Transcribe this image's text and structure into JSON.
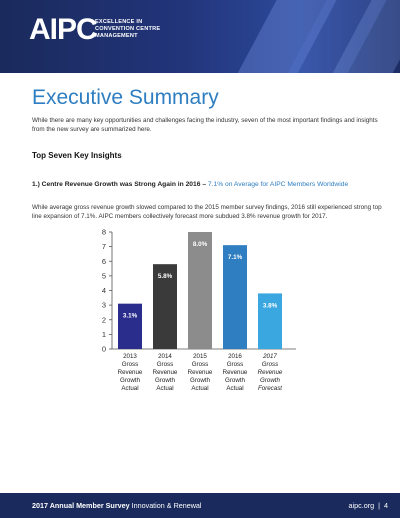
{
  "header": {
    "logo": "AIPC",
    "tagline": [
      "EXCELLENCE IN",
      "CONVENTION CENTRE",
      "MANAGEMENT"
    ]
  },
  "page": {
    "title": "Executive Summary",
    "intro": "While there are many key opportunities and challenges facing the industry, seven of the most important findings and insights from the new survey are summarized here.",
    "section_title": "Top Seven Key Insights",
    "insight_title_bold": "1.) Centre Revenue Growth was Strong Again in 2016 –",
    "insight_title_rest": " 7.1% on Average for AIPC Members Worldwide",
    "paragraph": "While average gross revenue growth slowed compared to the 2015 member survey findings, 2016 still experienced strong top line expansion of 7.1%. AIPC members collectively forecast more subdued 3.8% revenue growth for 2017."
  },
  "chart_data": {
    "type": "bar",
    "categories": [
      [
        "2013",
        "Gross",
        "Revenue",
        "Growth",
        "Actual"
      ],
      [
        "2014",
        "Gross",
        "Revenue",
        "Growth",
        "Actual"
      ],
      [
        "2015",
        "Gross",
        "Revenue",
        "Growth",
        "Actual"
      ],
      [
        "2016",
        "Gross",
        "Revenue",
        "Growth",
        "Actual"
      ],
      [
        "2017",
        "Gross",
        "Revenue",
        "Growth",
        "Forecast"
      ]
    ],
    "italic_categories": [
      4
    ],
    "values": [
      3.1,
      5.8,
      8.0,
      7.1,
      3.8
    ],
    "data_labels": [
      "3.1%",
      "5.8%",
      "8.0%",
      "7.1%",
      "3.8%"
    ],
    "colors": [
      "#2b2d8c",
      "#3a3a3a",
      "#8c8c8c",
      "#2e7ec1",
      "#3ba7e0"
    ],
    "ylim": [
      0,
      8
    ],
    "yticks": [
      "0",
      "1",
      "2",
      "3",
      "4",
      "5",
      "6",
      "7",
      "8"
    ],
    "grid": false
  },
  "footer": {
    "survey_bold": "2017 Annual Member Survey",
    "survey_rest": " Innovation & Renewal",
    "site": "aipc.org",
    "separator": "|",
    "page_number": "4"
  }
}
